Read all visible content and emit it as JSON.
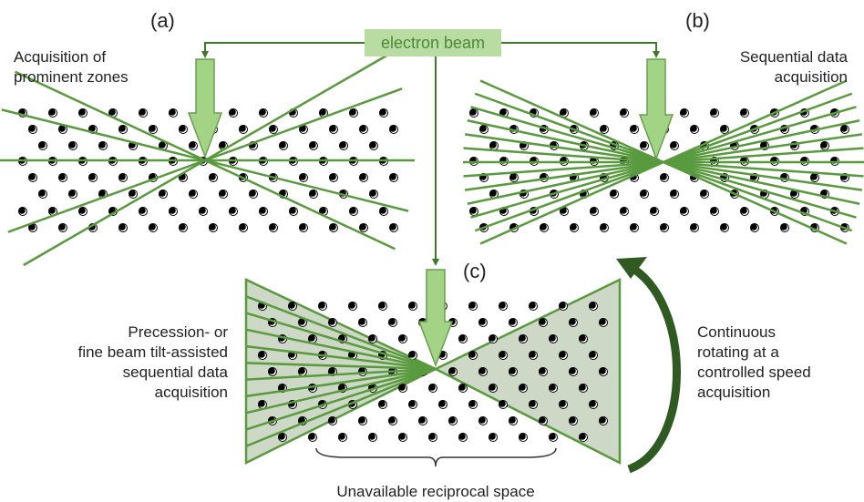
{
  "labels": {
    "a": "(a)",
    "b": "(b)",
    "c": "(c)"
  },
  "beam": "electron beam",
  "captions": {
    "a": [
      "Acquisition of",
      "prominent zones"
    ],
    "b": [
      "Sequential data",
      "acquisition"
    ],
    "c_left": [
      "Precession- or",
      "fine beam tilt-assisted",
      "sequential data",
      "acquisition"
    ],
    "c_right": [
      "Continuous",
      "rotating at a",
      "controlled speed",
      "acquisition"
    ],
    "c_bottom": "Unavailable reciprocal space"
  }
}
